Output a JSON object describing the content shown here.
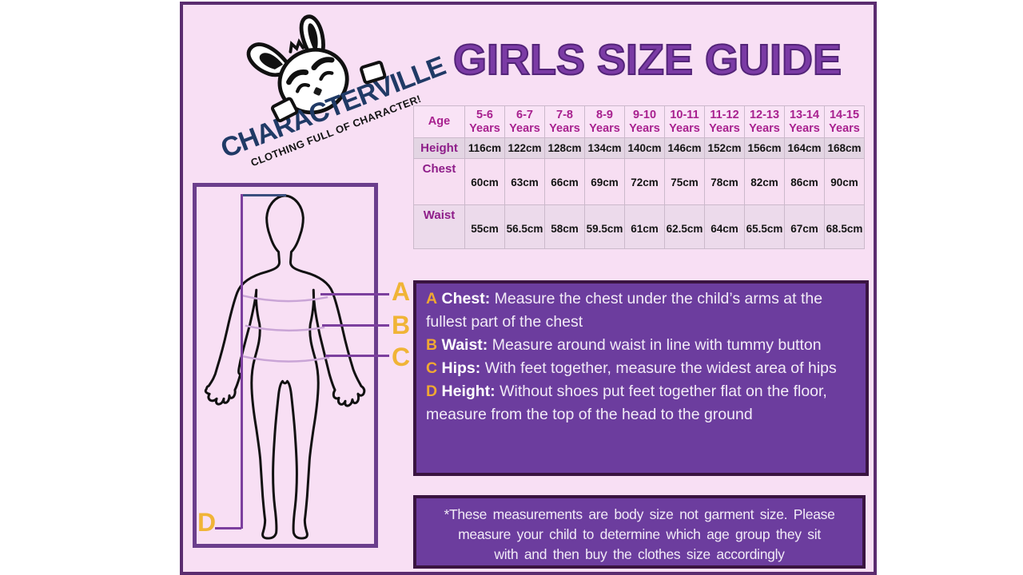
{
  "title": "GIRLS SIZE GUIDE",
  "logo": {
    "brand": "CHARACTERVILLE",
    "tagline": "CLOTHING FULL OF CHARACTER!"
  },
  "size_table": {
    "header_label": "Age",
    "years_word": "Years",
    "ages": [
      "5-6",
      "6-7",
      "7-8",
      "8-9",
      "9-10",
      "10-11",
      "11-12",
      "12-13",
      "13-14",
      "14-15"
    ],
    "rows": [
      {
        "label": "Height",
        "values": [
          "116cm",
          "122cm",
          "128cm",
          "134cm",
          "140cm",
          "146cm",
          "152cm",
          "156cm",
          "164cm",
          "168cm"
        ]
      },
      {
        "label": "Chest",
        "values": [
          "60cm",
          "63cm",
          "66cm",
          "69cm",
          "72cm",
          "75cm",
          "78cm",
          "82cm",
          "86cm",
          "90cm"
        ]
      },
      {
        "label": "Waist",
        "values": [
          "55cm",
          "56.5cm",
          "58cm",
          "59.5cm",
          "61cm",
          "62.5cm",
          "64cm",
          "65.5cm",
          "67cm",
          "68.5cm"
        ]
      }
    ]
  },
  "diagram": {
    "labels": [
      "A",
      "B",
      "C",
      "D"
    ]
  },
  "instructions": [
    {
      "letter": "A",
      "term": "Chest:",
      "text": "Measure the chest under the child’s arms at the fullest part of the chest"
    },
    {
      "letter": "B",
      "term": "Waist:",
      "text": "Measure around waist in line with tummy button"
    },
    {
      "letter": "C",
      "term": "Hips:",
      "text": "With feet together, measure the widest area of hips"
    },
    {
      "letter": "D",
      "term": "Height:",
      "text": "Without shoes put feet together flat on the floor, measure from the top of the head to the ground"
    }
  ],
  "note": {
    "lines": [
      "*These measurements are body size not garment size. Please",
      "measure your child to determine which age group they sit",
      "with and then buy the clothes size accordingly"
    ]
  },
  "colors": {
    "panel_background": "#F8DFF4",
    "panel_border": "#5B2C6F",
    "title_purple": "#7B3BA5",
    "box_purple": "#6C3D9E",
    "box_border": "#3A1440",
    "label_orange": "#F0B437",
    "header_magenta": "#A8218F",
    "brand_navy": "#203A66",
    "line_purple": "#7C3F9E"
  }
}
